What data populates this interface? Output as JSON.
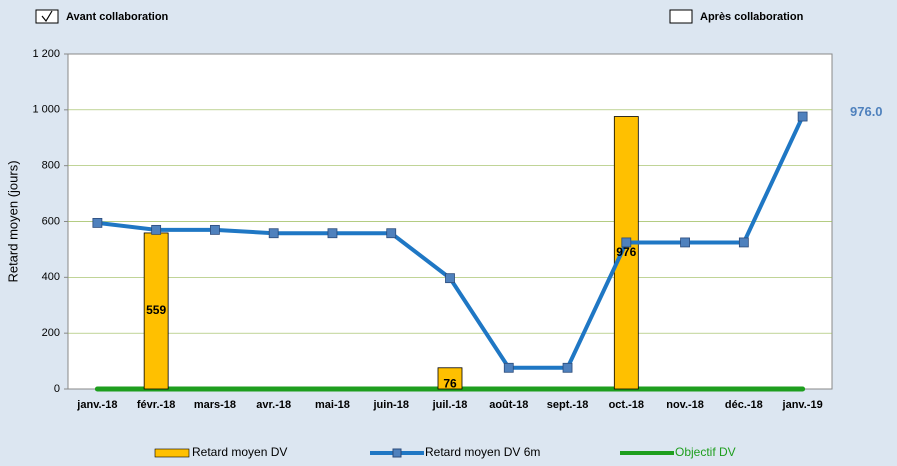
{
  "chart_data": {
    "type": "bar-line",
    "controls": [
      {
        "label": "Avant collaboration",
        "checked": true
      },
      {
        "label": "Après collaboration",
        "checked": false
      }
    ],
    "ylabel": "Retard moyen (jours)",
    "annotation": "976.0",
    "categories": [
      "janv.-18",
      "févr.-18",
      "mars-18",
      "avr.-18",
      "mai-18",
      "juin-18",
      "juil.-18",
      "août-18",
      "sept.-18",
      "oct.-18",
      "nov.-18",
      "déc.-18",
      "janv.-19"
    ],
    "series": [
      {
        "name": "Retard moyen DV",
        "type": "bar",
        "color": "#ffc000",
        "values": [
          null,
          559,
          null,
          null,
          null,
          null,
          76,
          null,
          null,
          976,
          null,
          null,
          null
        ]
      },
      {
        "name": "Retard moyen DV 6m",
        "type": "line",
        "color": "#1f77c4",
        "marker_color": "#4f81bd",
        "values": [
          595,
          570,
          570,
          558,
          558,
          558,
          397,
          76,
          76,
          525,
          525,
          525,
          976
        ]
      },
      {
        "name": "Objectif DV",
        "type": "line",
        "color": "#1e9e1e",
        "values": [
          0,
          0,
          0,
          0,
          0,
          0,
          0,
          0,
          0,
          0,
          0,
          0,
          0
        ]
      }
    ],
    "ylim": [
      0,
      1200
    ],
    "yticks": [
      0,
      200,
      400,
      600,
      800,
      {
        "value": 1000,
        "label": "1 000"
      },
      {
        "value": 1200,
        "label": "1 200"
      }
    ],
    "grid": true
  }
}
